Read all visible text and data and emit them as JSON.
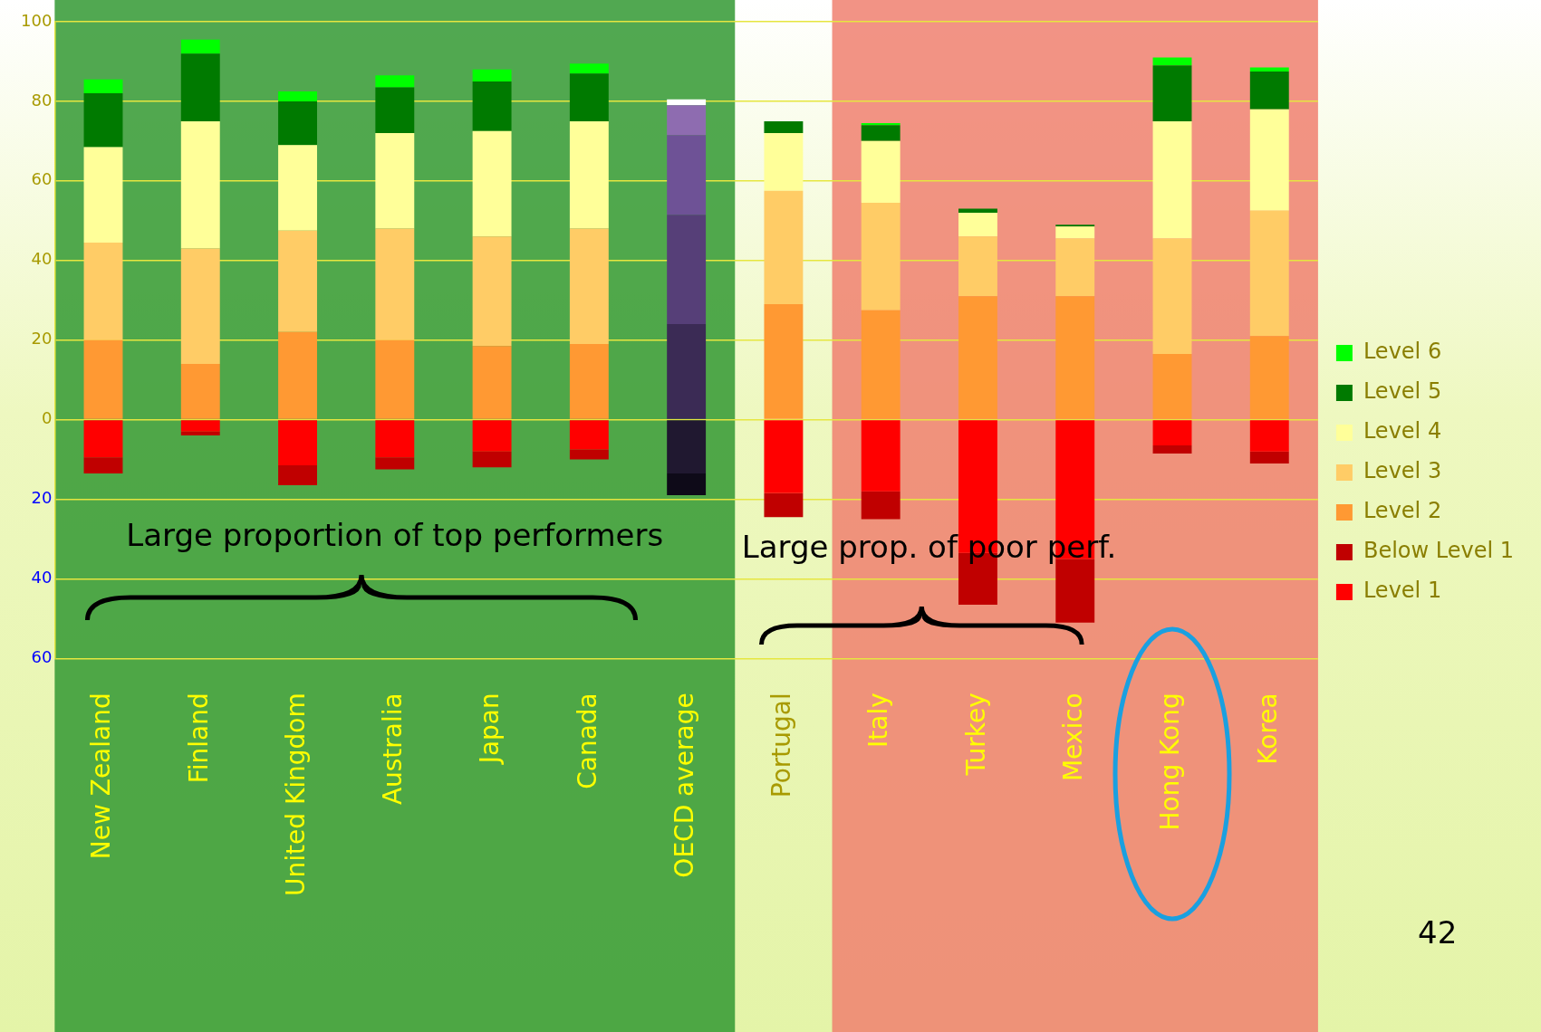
{
  "chart_data": {
    "type": "bar",
    "stacked": true,
    "categories": [
      "New Zealand",
      "Finland",
      "United Kingdom",
      "Australia",
      "Japan",
      "Canada",
      "OECD average",
      "Portugal",
      "Italy",
      "Turkey",
      "Mexico",
      "Hong Kong",
      "Korea"
    ],
    "series": [
      {
        "name": "Level 1",
        "color": "#ff0000",
        "values": [
          -9.5,
          -3,
          -11.5,
          -9.5,
          -8,
          -7.5,
          -13.5,
          -18.5,
          -18,
          -33.5,
          -35,
          -6.5,
          -8
        ],
        "colors": [
          "#ff0000",
          "#ff0000",
          "#ff0000",
          "#ff0000",
          "#ff0000",
          "#ff0000",
          "#201830",
          "#ff0000",
          "#ff0000",
          "#ff0000",
          "#ff0000",
          "#ff0000",
          "#ff0000"
        ]
      },
      {
        "name": "Below Level 1",
        "color": "#c00000",
        "values": [
          -4,
          -1,
          -5,
          -3,
          -4,
          -2.5,
          -5.5,
          -6,
          -7,
          -13,
          -16,
          -2,
          -3
        ],
        "colors": [
          "#c00000",
          "#c00000",
          "#c00000",
          "#c00000",
          "#c00000",
          "#c00000",
          "#0e0a18",
          "#c00000",
          "#c00000",
          "#c00000",
          "#c00000",
          "#c00000",
          "#c00000"
        ]
      },
      {
        "name": "Level 2",
        "color": "#ff9933",
        "values": [
          20,
          14,
          22,
          20,
          18.5,
          19,
          24,
          29,
          27.5,
          31,
          31,
          16.5,
          21
        ],
        "colors": [
          "#ff9933",
          "#ff9933",
          "#ff9933",
          "#ff9933",
          "#ff9933",
          "#ff9933",
          "#3b2b55",
          "#ff9933",
          "#ff9933",
          "#ff9933",
          "#ff9933",
          "#ff9933",
          "#ff9933"
        ]
      },
      {
        "name": "Level 3",
        "color": "#ffcc66",
        "values": [
          24.5,
          29,
          25.5,
          28,
          27.5,
          29,
          27.5,
          28.5,
          27,
          15,
          14.5,
          29,
          31.5
        ],
        "colors": [
          "#ffcc66",
          "#ffcc66",
          "#ffcc66",
          "#ffcc66",
          "#ffcc66",
          "#ffcc66",
          "#563f78",
          "#ffcc66",
          "#ffcc66",
          "#ffcc66",
          "#ffcc66",
          "#ffcc66",
          "#ffcc66"
        ]
      },
      {
        "name": "Level 4",
        "color": "#ffff99",
        "values": [
          24,
          32,
          21.5,
          24,
          26.5,
          27,
          20,
          14.5,
          15.5,
          6,
          3,
          29.5,
          25.5
        ],
        "colors": [
          "#ffff99",
          "#ffff99",
          "#ffff99",
          "#ffff99",
          "#ffff99",
          "#ffff99",
          "#6e5296",
          "#ffff99",
          "#ffff99",
          "#ffff99",
          "#ffff99",
          "#ffff99",
          "#ffff99"
        ]
      },
      {
        "name": "Level 5",
        "color": "#007a00",
        "values": [
          13.5,
          17,
          11,
          11.5,
          12.5,
          12,
          7.5,
          3,
          4,
          1,
          0.5,
          14,
          9.5
        ],
        "colors": [
          "#007a00",
          "#007a00",
          "#007a00",
          "#007a00",
          "#007a00",
          "#007a00",
          "#8e6cb0",
          "#007a00",
          "#007a00",
          "#007a00",
          "#007a00",
          "#007a00",
          "#007a00"
        ]
      },
      {
        "name": "Level 6",
        "color": "#00ff00",
        "values": [
          3.5,
          3.5,
          2.5,
          3,
          3,
          2.5,
          1.5,
          0,
          0.5,
          0,
          0,
          2,
          1
        ],
        "colors": [
          "#00ff00",
          "#00ff00",
          "#00ff00",
          "#00ff00",
          "#00ff00",
          "#00ff00",
          "#ffffff",
          "#00ff00",
          "#00ff00",
          "#00ff00",
          "#00ff00",
          "#00ff00",
          "#00ff00"
        ]
      }
    ],
    "ylim": [
      -60,
      100
    ],
    "yticks": [
      100,
      80,
      60,
      40,
      20,
      0,
      {
        "value": -20,
        "label": "20"
      },
      {
        "value": -40,
        "label": "40"
      },
      {
        "value": -60,
        "label": "60"
      }
    ],
    "grid": "y",
    "legend": "right",
    "bands": [
      {
        "axis": "x",
        "from": "New Zealand",
        "to": "OECD average",
        "color": "#339933"
      },
      {
        "axis": "x",
        "from": "Italy",
        "to": "Korea",
        "color": "#f08070"
      }
    ],
    "annotations": [
      "Large proportion of top performers",
      "Large prop. of poor perf.",
      "42"
    ]
  }
}
